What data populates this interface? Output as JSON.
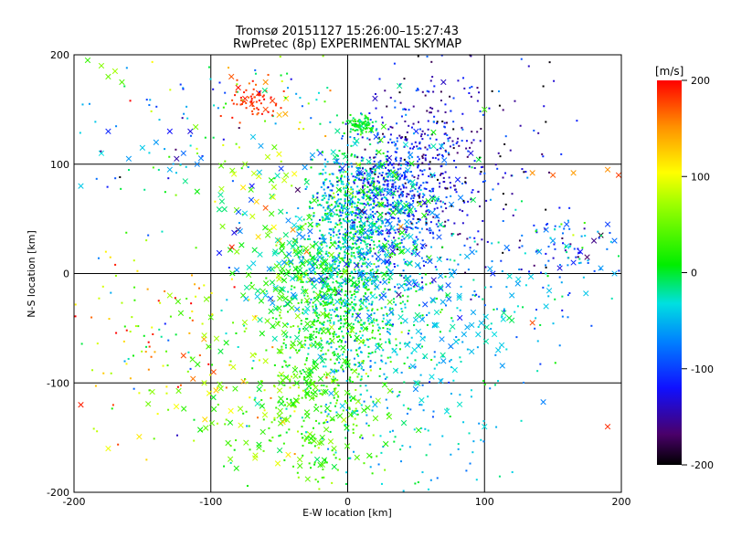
{
  "chart_data": {
    "type": "scatter",
    "title": "Tromsø 20151127 15:26:00–15:27:43",
    "subtitle": "RwPretec (8p) EXPERIMENTAL SKYMAP",
    "xlabel": "E-W location [km]",
    "ylabel": "N-S location [km]",
    "xlim": [
      -200,
      200
    ],
    "ylim": [
      -200,
      200
    ],
    "x_ticks": [
      -200,
      -100,
      0,
      100,
      200
    ],
    "y_ticks": [
      -200,
      -100,
      0,
      100,
      200
    ],
    "grid": true,
    "colorbar": {
      "title": "[m/s]",
      "range": [
        -200,
        200
      ],
      "ticks": [
        200,
        100,
        0,
        -100,
        -200
      ],
      "colormap": "rainbow"
    },
    "markers": [
      "x",
      "dot"
    ],
    "points": [
      {
        "x": 10,
        "y": 135,
        "v": -5,
        "m": "x"
      },
      {
        "x": -75,
        "y": 160,
        "v": 190,
        "m": "x"
      },
      {
        "x": -70,
        "y": 155,
        "v": 185,
        "m": "x"
      },
      {
        "x": -65,
        "y": 165,
        "v": 190,
        "m": "x"
      },
      {
        "x": -60,
        "y": 150,
        "v": 175,
        "m": "x"
      },
      {
        "x": -55,
        "y": 158,
        "v": 180,
        "m": "x"
      },
      {
        "x": -80,
        "y": 170,
        "v": 195,
        "m": "x"
      },
      {
        "x": -50,
        "y": 145,
        "v": 130,
        "m": "x"
      },
      {
        "x": -45,
        "y": 160,
        "v": 120,
        "m": "x"
      },
      {
        "x": -60,
        "y": 175,
        "v": 150,
        "m": "x"
      },
      {
        "x": -85,
        "y": 180,
        "v": 170,
        "m": "x"
      },
      {
        "x": -180,
        "y": 190,
        "v": 60,
        "m": "x"
      },
      {
        "x": -175,
        "y": 180,
        "v": 50,
        "m": "x"
      },
      {
        "x": -170,
        "y": 185,
        "v": 70,
        "m": "x"
      },
      {
        "x": -165,
        "y": 175,
        "v": 40,
        "m": "x"
      },
      {
        "x": -190,
        "y": 195,
        "v": 30,
        "m": "x"
      },
      {
        "x": -130,
        "y": 130,
        "v": -120,
        "m": "x"
      },
      {
        "x": -140,
        "y": 120,
        "v": -60,
        "m": "x"
      },
      {
        "x": -150,
        "y": 115,
        "v": -40,
        "m": "x"
      },
      {
        "x": -120,
        "y": 110,
        "v": -80,
        "m": "x"
      },
      {
        "x": -110,
        "y": 100,
        "v": -70,
        "m": "x"
      },
      {
        "x": -175,
        "y": 130,
        "v": -110,
        "m": "x"
      },
      {
        "x": -180,
        "y": 110,
        "v": -30,
        "m": "x"
      },
      {
        "x": -160,
        "y": 105,
        "v": -60,
        "m": "x"
      },
      {
        "x": -130,
        "y": 95,
        "v": -50,
        "m": "x"
      },
      {
        "x": -125,
        "y": 105,
        "v": -150,
        "m": "x"
      },
      {
        "x": -115,
        "y": 130,
        "v": -130,
        "m": "x"
      },
      {
        "x": -195,
        "y": 80,
        "v": -40,
        "m": "x"
      },
      {
        "x": -110,
        "y": 75,
        "v": 10,
        "m": "x"
      },
      {
        "x": 135,
        "y": 92,
        "v": 150,
        "m": "x"
      },
      {
        "x": 150,
        "y": 90,
        "v": 170,
        "m": "x"
      },
      {
        "x": 165,
        "y": 92,
        "v": 145,
        "m": "x"
      },
      {
        "x": 190,
        "y": 95,
        "v": 150,
        "m": "x"
      },
      {
        "x": 198,
        "y": 90,
        "v": 180,
        "m": "x"
      },
      {
        "x": 145,
        "y": 40,
        "v": -70,
        "m": "x"
      },
      {
        "x": 150,
        "y": 30,
        "v": -60,
        "m": "x"
      },
      {
        "x": 160,
        "y": 25,
        "v": -40,
        "m": "x"
      },
      {
        "x": 170,
        "y": 20,
        "v": -120,
        "m": "x"
      },
      {
        "x": 175,
        "y": 15,
        "v": -170,
        "m": "x"
      },
      {
        "x": 180,
        "y": 30,
        "v": -160,
        "m": "x"
      },
      {
        "x": 185,
        "y": 35,
        "v": -190,
        "m": "x"
      },
      {
        "x": 190,
        "y": 45,
        "v": -100,
        "m": "x"
      },
      {
        "x": 195,
        "y": 30,
        "v": -80,
        "m": "x"
      },
      {
        "x": 165,
        "y": 10,
        "v": -110,
        "m": "x"
      },
      {
        "x": 155,
        "y": 5,
        "v": -130,
        "m": "x"
      },
      {
        "x": 185,
        "y": 5,
        "v": -60,
        "m": "x"
      },
      {
        "x": 195,
        "y": 0,
        "v": -50,
        "m": "x"
      },
      {
        "x": 140,
        "y": 20,
        "v": -60,
        "m": "x"
      },
      {
        "x": 160,
        "y": 45,
        "v": -90,
        "m": "x"
      },
      {
        "x": 135,
        "y": -45,
        "v": 175,
        "m": "x"
      },
      {
        "x": 190,
        "y": -140,
        "v": 185,
        "m": "x"
      },
      {
        "x": -120,
        "y": -75,
        "v": 175,
        "m": "x"
      },
      {
        "x": -98,
        "y": -90,
        "v": 175,
        "m": "x"
      },
      {
        "x": -195,
        "y": -120,
        "v": 190,
        "m": "x"
      },
      {
        "x": -105,
        "y": -60,
        "v": 140,
        "m": "x"
      },
      {
        "x": -175,
        "y": -160,
        "v": 100,
        "m": "x"
      },
      {
        "x": -60,
        "y": -80,
        "v": 80,
        "m": "x"
      },
      {
        "x": -40,
        "y": -120,
        "v": 60,
        "m": "x"
      },
      {
        "x": -30,
        "y": -150,
        "v": 40,
        "m": "x"
      },
      {
        "x": -20,
        "y": -175,
        "v": 20,
        "m": "x"
      },
      {
        "x": -10,
        "y": -160,
        "v": 50,
        "m": "x"
      },
      {
        "x": -25,
        "y": -110,
        "v": 30,
        "m": "x"
      },
      {
        "x": -45,
        "y": -95,
        "v": 20,
        "m": "x"
      },
      {
        "x": -50,
        "y": -130,
        "v": 50,
        "m": "x"
      },
      {
        "x": -35,
        "y": -170,
        "v": 60,
        "m": "x"
      },
      {
        "x": 20,
        "y": -120,
        "v": -50,
        "m": "x"
      },
      {
        "x": 50,
        "y": -100,
        "v": -40,
        "m": "x"
      },
      {
        "x": 70,
        "y": -80,
        "v": -60,
        "m": "x"
      },
      {
        "x": 100,
        "y": -140,
        "v": -30,
        "m": "x"
      },
      {
        "x": -60,
        "y": 60,
        "v": 170,
        "m": "x"
      },
      {
        "x": -40,
        "y": 40,
        "v": 150,
        "m": "x"
      },
      {
        "x": -30,
        "y": 20,
        "v": 160,
        "m": "x"
      },
      {
        "x": -50,
        "y": 30,
        "v": 130,
        "m": "x"
      },
      {
        "x": -35,
        "y": 50,
        "v": -30,
        "m": "x"
      },
      {
        "x": -70,
        "y": 80,
        "v": -120,
        "m": "x"
      },
      {
        "x": -80,
        "y": 40,
        "v": -175,
        "m": "x"
      },
      {
        "x": -45,
        "y": 90,
        "v": 60,
        "m": "x"
      },
      {
        "x": -75,
        "y": 100,
        "v": 60,
        "m": "x"
      },
      {
        "x": 70,
        "y": 175,
        "v": -140,
        "m": "x"
      },
      {
        "x": 90,
        "y": 110,
        "v": -130,
        "m": "x"
      },
      {
        "x": 50,
        "y": 130,
        "v": -110,
        "m": "x"
      },
      {
        "x": -20,
        "y": 110,
        "v": -100,
        "m": "x"
      },
      {
        "x": 20,
        "y": 160,
        "v": -140,
        "m": "x"
      },
      {
        "x": 100,
        "y": 150,
        "v": 30,
        "m": "x"
      },
      {
        "x": -100,
        "y": -40,
        "v": 40,
        "m": "x"
      },
      {
        "x": -130,
        "y": -20,
        "v": 70,
        "m": "x"
      },
      {
        "x": -60,
        "y": -20,
        "v": -40,
        "m": "x"
      },
      {
        "x": 120,
        "y": -20,
        "v": -50,
        "m": "x"
      },
      {
        "x": 145,
        "y": -30,
        "v": -40,
        "m": "x"
      },
      {
        "x": 110,
        "y": -70,
        "v": -40,
        "m": "x"
      }
    ],
    "clusters": [
      {
        "cx": 0,
        "cy": 70,
        "sx": 14,
        "sy": 22,
        "n": 360,
        "v": -20,
        "vs": 40,
        "m": "dot"
      },
      {
        "cx": 30,
        "cy": 60,
        "sx": 20,
        "sy": 30,
        "n": 420,
        "v": -100,
        "vs": 30,
        "m": "dot"
      },
      {
        "cx": 45,
        "cy": 95,
        "sx": 20,
        "sy": 35,
        "n": 220,
        "v": -120,
        "vs": 35,
        "m": "dot"
      },
      {
        "cx": 60,
        "cy": 130,
        "sx": 25,
        "sy": 30,
        "n": 110,
        "v": -125,
        "vs": 35,
        "m": "dot"
      },
      {
        "cx": 80,
        "cy": 70,
        "sx": 30,
        "sy": 40,
        "n": 120,
        "v": -150,
        "vs": 40,
        "m": "dot"
      },
      {
        "cx": 10,
        "cy": 135,
        "sx": 6,
        "sy": 5,
        "n": 90,
        "v": 5,
        "vs": 15,
        "m": "dot"
      },
      {
        "cx": 0,
        "cy": 25,
        "sx": 18,
        "sy": 25,
        "n": 300,
        "v": -20,
        "vs": 30,
        "m": "dot"
      },
      {
        "cx": -5,
        "cy": -30,
        "sx": 22,
        "sy": 30,
        "n": 520,
        "v": 5,
        "vs": 25,
        "m": "dot"
      },
      {
        "cx": 20,
        "cy": -40,
        "sx": 30,
        "sy": 40,
        "n": 260,
        "v": -30,
        "vs": 30,
        "m": "dot"
      },
      {
        "cx": -25,
        "cy": -120,
        "sx": 25,
        "sy": 40,
        "n": 240,
        "v": 35,
        "vs": 25,
        "m": "dot"
      },
      {
        "cx": 40,
        "cy": -130,
        "sx": 40,
        "sy": 45,
        "n": 140,
        "v": -40,
        "vs": 30,
        "m": "dot"
      },
      {
        "cx": -120,
        "cy": -80,
        "sx": 50,
        "sy": 50,
        "n": 120,
        "v": 80,
        "vs": 80,
        "m": "dot"
      },
      {
        "cx": -150,
        "cy": -30,
        "sx": 30,
        "sy": 30,
        "n": 40,
        "v": 110,
        "vs": 80,
        "m": "dot"
      },
      {
        "cx": 120,
        "cy": -10,
        "sx": 50,
        "sy": 40,
        "n": 90,
        "v": -60,
        "vs": 30,
        "m": "dot"
      },
      {
        "cx": 160,
        "cy": 20,
        "sx": 25,
        "sy": 20,
        "n": 80,
        "v": -70,
        "vs": 60,
        "m": "dot"
      },
      {
        "cx": -60,
        "cy": 140,
        "sx": 40,
        "sy": 40,
        "n": 70,
        "v": 40,
        "vs": 90,
        "m": "dot"
      },
      {
        "cx": -140,
        "cy": 130,
        "sx": 40,
        "sy": 40,
        "n": 60,
        "v": -50,
        "vs": 50,
        "m": "dot"
      },
      {
        "cx": -70,
        "cy": 160,
        "sx": 10,
        "sy": 8,
        "n": 60,
        "v": 185,
        "vs": 10,
        "m": "dot"
      },
      {
        "cx": 100,
        "cy": 150,
        "sx": 30,
        "sy": 40,
        "n": 50,
        "v": -150,
        "vs": 40,
        "m": "dot"
      },
      {
        "cx": -40,
        "cy": 0,
        "sx": 20,
        "sy": 25,
        "n": 150,
        "v": 0,
        "vs": 40,
        "m": "x"
      },
      {
        "cx": 30,
        "cy": 20,
        "sx": 35,
        "sy": 40,
        "n": 120,
        "v": -60,
        "vs": 40,
        "m": "x"
      },
      {
        "cx": -20,
        "cy": -100,
        "sx": 25,
        "sy": 45,
        "n": 120,
        "v": 30,
        "vs": 20,
        "m": "x"
      },
      {
        "cx": -80,
        "cy": -110,
        "sx": 40,
        "sy": 40,
        "n": 60,
        "v": 50,
        "vs": 40,
        "m": "x"
      },
      {
        "cx": 60,
        "cy": -50,
        "sx": 40,
        "sy": 40,
        "n": 80,
        "v": -40,
        "vs": 20,
        "m": "x"
      },
      {
        "cx": -60,
        "cy": 80,
        "sx": 30,
        "sy": 40,
        "n": 60,
        "v": 10,
        "vs": 70,
        "m": "x"
      },
      {
        "cx": 30,
        "cy": 80,
        "sx": 25,
        "sy": 25,
        "n": 80,
        "v": -20,
        "vs": 40,
        "m": "x"
      }
    ]
  }
}
